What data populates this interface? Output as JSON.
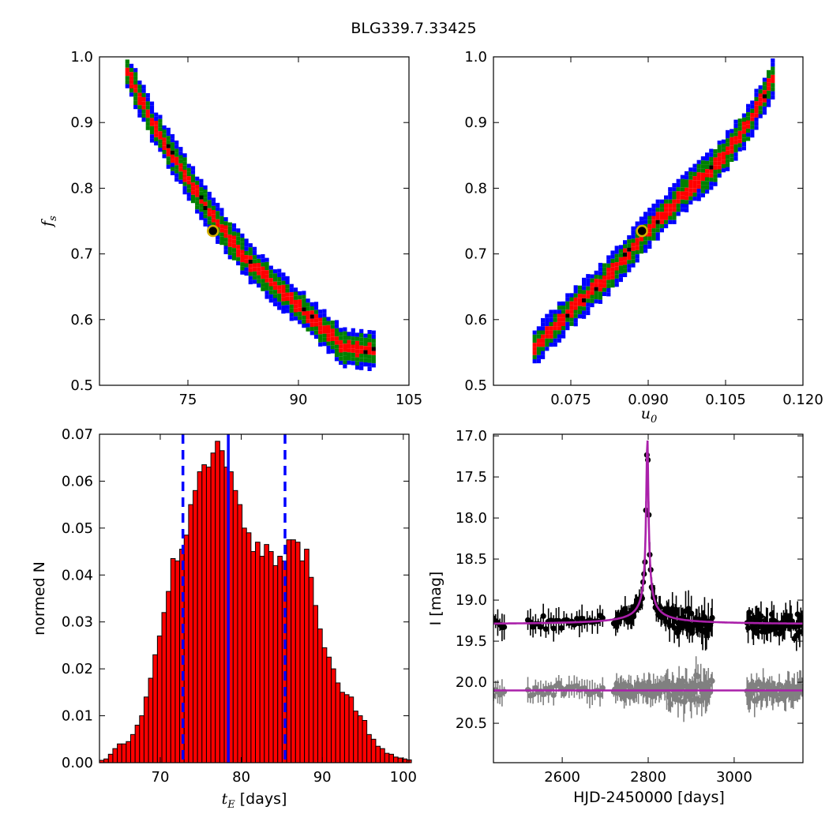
{
  "figure": {
    "title": "BLG339.7.33425"
  },
  "chart_data": [
    {
      "panel": "top-left",
      "type": "heatmap",
      "title": "",
      "xlabel": "",
      "ylabel": "f_s",
      "xlim": [
        63,
        105
      ],
      "ylim": [
        0.5,
        1.0
      ],
      "xticks": [
        "75",
        "90",
        "105"
      ],
      "yticks": [
        "0.5",
        "0.6",
        "0.7",
        "0.8",
        "0.9",
        "1.0"
      ],
      "levels": [
        {
          "name": "outer",
          "color": "#0000ff"
        },
        {
          "name": "middle",
          "color": "#008000"
        },
        {
          "name": "inner",
          "color": "#ff0000"
        },
        {
          "name": "core",
          "color": "#000000"
        }
      ],
      "ridge": [
        [
          66.5,
          0.98
        ],
        [
          70,
          0.9
        ],
        [
          74,
          0.83
        ],
        [
          78,
          0.76
        ],
        [
          83,
          0.69
        ],
        [
          88,
          0.64
        ],
        [
          92,
          0.6
        ],
        [
          96,
          0.56
        ],
        [
          100,
          0.555
        ]
      ],
      "best_fit": {
        "x": 78.4,
        "y": 0.735,
        "color": "#d4b000"
      }
    },
    {
      "panel": "top-right",
      "type": "heatmap",
      "title": "",
      "xlabel": "u_0",
      "ylabel": "",
      "xlim": [
        0.06,
        0.12
      ],
      "ylim": [
        0.5,
        1.0
      ],
      "xticks": [
        "0.075",
        "0.090",
        "0.105",
        "0.120"
      ],
      "yticks": [
        "0.5",
        "0.6",
        "0.7",
        "0.8",
        "0.9",
        "1.0"
      ],
      "ridge": [
        [
          0.0668,
          0.555
        ],
        [
          0.075,
          0.62
        ],
        [
          0.082,
          0.67
        ],
        [
          0.089,
          0.735
        ],
        [
          0.096,
          0.79
        ],
        [
          0.103,
          0.84
        ],
        [
          0.109,
          0.9
        ],
        [
          0.1145,
          0.98
        ]
      ],
      "best_fit": {
        "x": 0.0888,
        "y": 0.735,
        "color": "#d4b000"
      }
    },
    {
      "panel": "bottom-left",
      "type": "bar",
      "title": "",
      "xlabel": "t_E [days]",
      "ylabel": "normed N",
      "xlim": [
        62.5,
        100.7
      ],
      "ylim": [
        0,
        0.07
      ],
      "xticks": [
        "70",
        "80",
        "90",
        "100"
      ],
      "yticks": [
        "0.00",
        "0.01",
        "0.02",
        "0.03",
        "0.04",
        "0.05",
        "0.06",
        "0.07"
      ],
      "bar_color": "#ff0000",
      "bin_start": 62.5,
      "bin_width": 0.55,
      "values": [
        0.0005,
        0.0008,
        0.0018,
        0.003,
        0.004,
        0.004,
        0.0045,
        0.006,
        0.008,
        0.01,
        0.014,
        0.018,
        0.023,
        0.027,
        0.032,
        0.0365,
        0.0435,
        0.043,
        0.0455,
        0.0485,
        0.055,
        0.058,
        0.062,
        0.0635,
        0.063,
        0.066,
        0.0685,
        0.0665,
        0.063,
        0.062,
        0.058,
        0.055,
        0.05,
        0.049,
        0.045,
        0.047,
        0.044,
        0.0465,
        0.045,
        0.042,
        0.044,
        0.043,
        0.0475,
        0.0475,
        0.047,
        0.043,
        0.0455,
        0.0395,
        0.0335,
        0.0285,
        0.0245,
        0.0225,
        0.02,
        0.017,
        0.015,
        0.0145,
        0.014,
        0.011,
        0.01,
        0.009,
        0.006,
        0.005,
        0.0035,
        0.003,
        0.002,
        0.0018,
        0.0012,
        0.001,
        0.0008,
        0.0006
      ],
      "vlines": [
        {
          "x": 72.8,
          "style": "dashed",
          "color": "#0000ff"
        },
        {
          "x": 78.4,
          "style": "solid",
          "color": "#0000ff"
        },
        {
          "x": 85.4,
          "style": "dashed",
          "color": "#0000ff"
        }
      ]
    },
    {
      "panel": "bottom-right",
      "type": "scatter",
      "title": "",
      "xlabel": "HJD-2450000 [days]",
      "ylabel": "I [mag]",
      "xlim": [
        2440,
        3160
      ],
      "ylim": [
        20.98,
        16.98
      ],
      "xticks": [
        "2600",
        "2800",
        "3000"
      ],
      "yticks": [
        "17.0",
        "17.5",
        "18.0",
        "18.5",
        "19.0",
        "19.5",
        "20.0",
        "20.5"
      ],
      "series": [
        {
          "color": "#000000",
          "model": {
            "t0": 2798,
            "base": 19.3,
            "peak": 17.0,
            "width": 18
          }
        },
        {
          "color": "#808080",
          "model": {
            "t0": 2798,
            "base": 20.1,
            "peak": 20.1,
            "width": 18
          }
        }
      ],
      "model_color": "#aa20aa"
    }
  ]
}
